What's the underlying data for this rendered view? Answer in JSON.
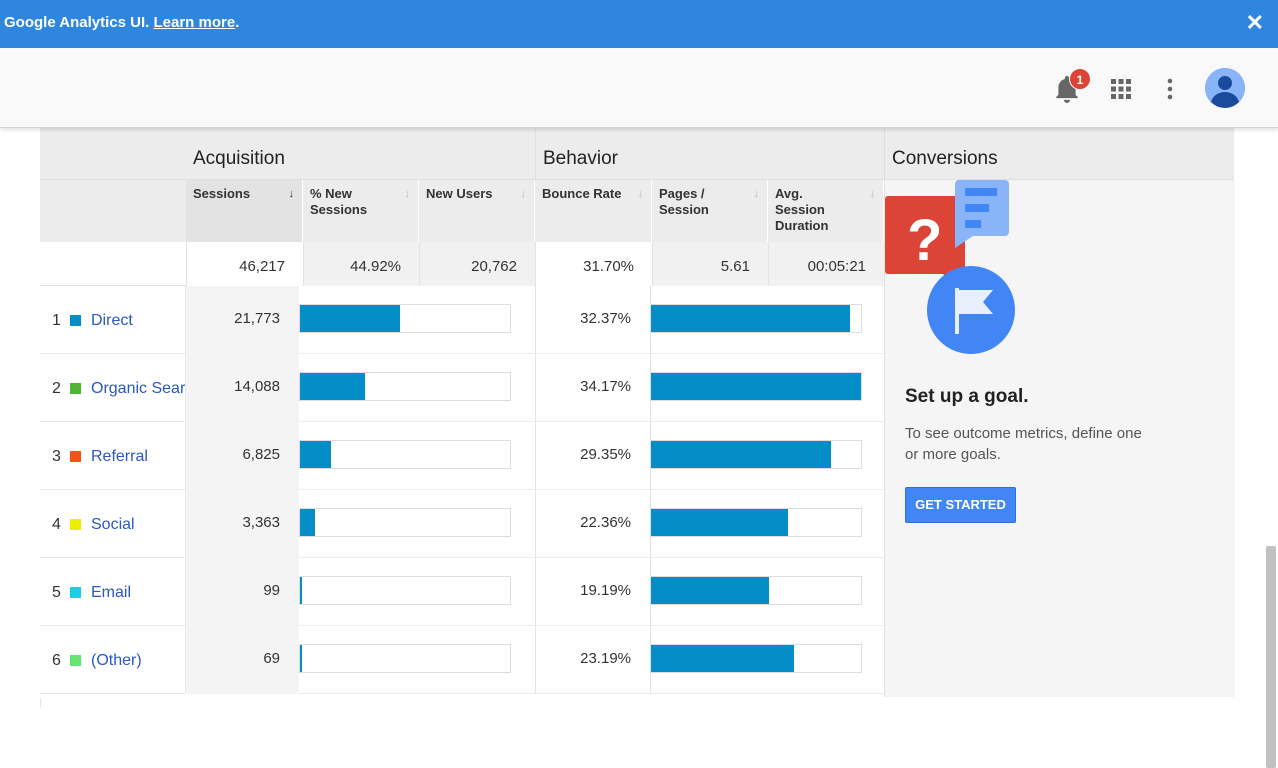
{
  "banner": {
    "text": "Google Analytics UI. ",
    "link": "Learn more",
    "suffix": ".",
    "close": "✕"
  },
  "header": {
    "notification_count": "1",
    "icons": [
      "bell-icon",
      "apps-grid-icon",
      "more-vert-icon",
      "account-avatar-icon"
    ]
  },
  "groups": {
    "acquisition": "Acquisition",
    "behavior": "Behavior",
    "conversions": "Conversions"
  },
  "columns": {
    "sessions": "Sessions",
    "pct_new_sessions": "% New Sessions",
    "new_users": "New Users",
    "bounce_rate": "Bounce Rate",
    "pages_session": "Pages / Session",
    "avg_session_duration": "Avg. Session Duration"
  },
  "totals": {
    "sessions": "46,217",
    "pct_new_sessions": "44.92%",
    "new_users": "20,762",
    "bounce_rate": "31.70%",
    "pages_session": "5.61",
    "avg_session_duration": "00:05:21"
  },
  "rows": [
    {
      "num": "1",
      "channel": "Direct",
      "color": "#058dc7",
      "sessions": "21,773",
      "sessions_fraction": 0.471,
      "bounce_rate": "32.37%",
      "bounce_fraction": 0.947
    },
    {
      "num": "2",
      "channel": "Organic Search",
      "color": "#50b432",
      "sessions": "14,088",
      "sessions_fraction": 0.305,
      "bounce_rate": "34.17%",
      "bounce_fraction": 1.0
    },
    {
      "num": "3",
      "channel": "Referral",
      "color": "#ed561b",
      "sessions": "6,825",
      "sessions_fraction": 0.148,
      "bounce_rate": "29.35%",
      "bounce_fraction": 0.859
    },
    {
      "num": "4",
      "channel": "Social",
      "color": "#edef00",
      "sessions": "3,363",
      "sessions_fraction": 0.073,
      "bounce_rate": "22.36%",
      "bounce_fraction": 0.654
    },
    {
      "num": "5",
      "channel": "Email",
      "color": "#24cbe5",
      "sessions": "99",
      "sessions_fraction": 0.002,
      "bounce_rate": "19.19%",
      "bounce_fraction": 0.562
    },
    {
      "num": "6",
      "channel": "(Other)",
      "color": "#64e572",
      "sessions": "69",
      "sessions_fraction": 0.002,
      "bounce_rate": "23.19%",
      "bounce_fraction": 0.679
    }
  ],
  "goal": {
    "title": "Set up a goal.",
    "description": "To see outcome metrics, define one or more goals.",
    "button": "GET STARTED"
  }
}
